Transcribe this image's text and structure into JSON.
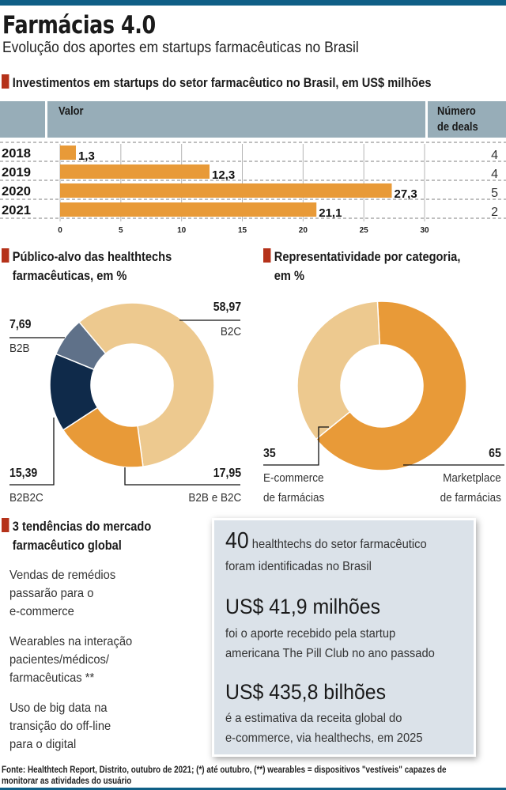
{
  "header": {
    "title": "Farmácias 4.0",
    "subtitle": "Evolução dos aportes em startups farmacêuticas no Brasil"
  },
  "sections": {
    "investments_title": "Investimentos em startups do setor farmacêutico no Brasil, em US$ milhões",
    "audience_title_1": "Público-alvo das healthtechs",
    "audience_title_2": "farmacêuticas, em %",
    "category_title_1": "Representatividade por categoria,",
    "category_title_2": "em %",
    "trends_title_1": "3 tendências do mercado",
    "trends_title_2": "farmacêutico global"
  },
  "table_header": {
    "valor": "Valor",
    "deals_1": "Número",
    "deals_2": "de deals"
  },
  "colors": {
    "bar": "#e89a38",
    "accent_mark": "#b5321a",
    "header_bg": "#97adb8",
    "b2c": "#edc98f",
    "b2b": "#5f7189",
    "b2b2c": "#0f2a4a",
    "b2b_e_b2c": "#e89a38",
    "marketplace": "#e89a38",
    "ecommerce": "#edc98f",
    "factbox_bg": "#dbe2e9",
    "brand_bar": "#0f5f86"
  },
  "chart_data": [
    {
      "type": "bar",
      "orientation": "horizontal",
      "title": "Investimentos em startups do setor farmacêutico no Brasil, em US$ milhões",
      "categories": [
        "2018",
        "2019",
        "2020",
        "2021"
      ],
      "values": [
        1.3,
        12.3,
        27.3,
        21.1
      ],
      "value_labels": [
        "1,3",
        "12,3",
        "27,3",
        "21,1"
      ],
      "deals": [
        4,
        4,
        5,
        2
      ],
      "xlim": [
        0,
        30
      ],
      "xticks": [
        0,
        5,
        10,
        15,
        20,
        25,
        30
      ],
      "xlabel": "Valor",
      "extra_column": "Número de deals",
      "grid": true
    },
    {
      "type": "pie",
      "subtype": "donut",
      "title": "Público-alvo das healthtechs farmacêuticas, em %",
      "slices": [
        {
          "name": "B2C",
          "value": 58.97,
          "label": "58,97"
        },
        {
          "name": "B2B e B2C",
          "value": 17.95,
          "label": "17,95"
        },
        {
          "name": "B2B2C",
          "value": 15.39,
          "label": "15,39"
        },
        {
          "name": "B2B",
          "value": 7.69,
          "label": "7,69"
        }
      ]
    },
    {
      "type": "pie",
      "subtype": "donut",
      "title": "Representatividade por categoria, em %",
      "slices": [
        {
          "name": "Marketplace de farmácias",
          "value": 65,
          "label": "65"
        },
        {
          "name": "E-commerce de farmácias",
          "value": 35,
          "label": "35"
        }
      ]
    }
  ],
  "donut1_labels": {
    "b2c_value": "58,97",
    "b2c_name": "B2C",
    "b2b_value": "7,69",
    "b2b_name": "B2B",
    "b2b2c_value": "15,39",
    "b2b2c_name": "B2B2C",
    "b2be_value": "17,95",
    "b2be_name": "B2B e B2C"
  },
  "donut2_labels": {
    "ecom_value": "35",
    "ecom_name_1": "E-commerce",
    "ecom_name_2": "de farmácias",
    "market_value": "65",
    "market_name_1": "Marketplace",
    "market_name_2": "de farmácias"
  },
  "trends": [
    [
      "Vendas de remédios",
      "passarão para o",
      "e-commerce"
    ],
    [
      "Wearables na interação",
      "pacientes/médicos/",
      "farmacêuticas **"
    ],
    [
      "Uso de big data na",
      "transição do off-line",
      "para o digital"
    ]
  ],
  "facts": {
    "f1_big": "40",
    "f1_line1": "healthtechs do setor farmacêutico",
    "f1_line2": "foram identificadas no Brasil",
    "f2_big": "US$ 41,9 milhões",
    "f2_line1": "foi o aporte recebido pela startup",
    "f2_line2": "americana The Pill Club no ano passado",
    "f3_big": "US$ 435,8 bilhões",
    "f3_line1": "é a estimativa da receita global do",
    "f3_line2": "e-commerce, via healthechs, em 2025"
  },
  "source": {
    "line1": "Fonte: Healthtech Report, Distrito, outubro de 2021; (*) até outubro, (**) wearables = dispositivos \"vestíveis\" capazes de",
    "line2": "monitorar as atividades do usuário"
  }
}
